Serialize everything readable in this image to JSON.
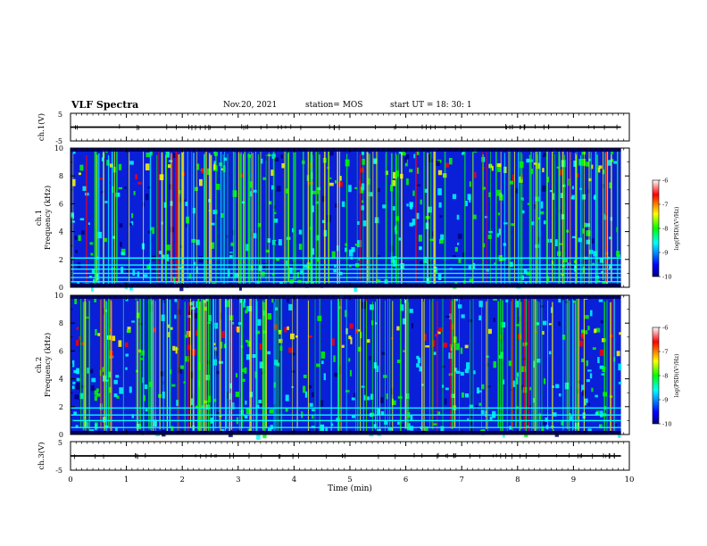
{
  "header": {
    "title": "VLF Spectra",
    "date": "Nov.20, 2021",
    "station": "station= MOS",
    "start": "start  UT =   18: 30: 1"
  },
  "chart_data": [
    {
      "type": "line",
      "title": "",
      "ylabel": "ch.1(V)",
      "ylim": [
        -5,
        5
      ],
      "yticks": [
        "5",
        "-5"
      ],
      "series": [
        {
          "x": [
            0,
            9.85
          ],
          "y": [
            0,
            0
          ]
        }
      ]
    },
    {
      "type": "heatmap",
      "ylabel": "ch.1\nFrequency (kHz)",
      "ylabel_lines": [
        "ch.1",
        "Frequency (kHz)"
      ],
      "xlim": [
        0,
        10
      ],
      "ylim": [
        0,
        10
      ],
      "yticks": [
        "0",
        "2",
        "4",
        "6",
        "8",
        "10"
      ],
      "data_extent_min": 9.85,
      "colorbar": {
        "label": "log(PSD)(V²/Hz)",
        "range": [
          -10,
          -6
        ],
        "ticks": [
          "-6",
          "-7",
          "-8",
          "-9",
          "-10"
        ]
      },
      "horizontal_lines_khz": [
        0.4,
        0.7,
        1.0,
        1.3,
        1.6,
        2.1
      ],
      "band_khz": [
        7.5,
        9.0
      ]
    },
    {
      "type": "heatmap",
      "ylabel": "ch.2\nFrequency (kHz)",
      "ylabel_lines": [
        "ch.2",
        "Frequency (kHz)"
      ],
      "xlim": [
        0,
        10
      ],
      "ylim": [
        0,
        10
      ],
      "yticks": [
        "0",
        "2",
        "4",
        "6",
        "8",
        "10"
      ],
      "data_extent_min": 9.85,
      "colorbar": {
        "label": "log(PSD)(V²/Hz)",
        "range": [
          -10,
          -6
        ],
        "ticks": [
          "-6",
          "-7",
          "-8",
          "-9",
          "-10"
        ]
      },
      "horizontal_lines_khz": [
        0.5,
        1.0,
        1.4,
        1.9
      ],
      "band_khz": [
        6.0,
        8.0
      ]
    },
    {
      "type": "line",
      "ylabel": "ch.3(V)",
      "ylim": [
        -5,
        5
      ],
      "yticks": [
        "5",
        "-5"
      ],
      "series": [
        {
          "x": [
            0,
            9.85
          ],
          "y": [
            0,
            0
          ]
        }
      ],
      "xlabel": "Time  (min)",
      "xticks": [
        "0",
        "1",
        "2",
        "3",
        "4",
        "5",
        "6",
        "7",
        "8",
        "9",
        "10"
      ]
    }
  ],
  "colors": {
    "jet": [
      "#000080",
      "#0000ff",
      "#00ffff",
      "#00ff00",
      "#ffff00",
      "#ff0000",
      "#ffffff"
    ]
  }
}
